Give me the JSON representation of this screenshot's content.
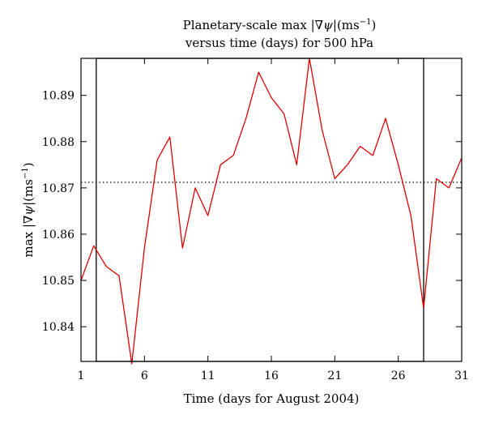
{
  "chart_data": {
    "type": "line",
    "title_lines": [
      "Planetary-scale max |∇ψ|(ms⁻¹)",
      "versus time (days) for 500 hPa"
    ],
    "xlabel": "Time (days for August 2004)",
    "ylabel": "max |∇ψ|(ms⁻¹)",
    "xlim": [
      1,
      31
    ],
    "ylim": [
      10.8325,
      10.898
    ],
    "x_ticks": [
      1,
      6,
      11,
      16,
      21,
      26,
      31
    ],
    "y_ticks": [
      10.84,
      10.85,
      10.86,
      10.87,
      10.88,
      10.89
    ],
    "y_tick_labels": [
      "10.84",
      "10.85",
      "10.86",
      "10.87",
      "10.88",
      "10.89"
    ],
    "reference_line": {
      "y": 10.8712,
      "style": "dotted"
    },
    "window_box": {
      "x_start": 2.2,
      "x_end": 28
    },
    "grid": false,
    "series": [
      {
        "color": "#e00000",
        "x": [
          1,
          2,
          3,
          4,
          5,
          6,
          7,
          8,
          9,
          10,
          11,
          12,
          13,
          14,
          15,
          16,
          17,
          18,
          19,
          20,
          21,
          22,
          23,
          24,
          25,
          26,
          27,
          28,
          29,
          30,
          31
        ],
        "values": [
          10.85,
          10.8575,
          10.853,
          10.851,
          10.832,
          10.857,
          10.876,
          10.881,
          10.857,
          10.87,
          10.864,
          10.875,
          10.877,
          10.885,
          10.895,
          10.8895,
          10.886,
          10.875,
          10.898,
          10.8825,
          10.872,
          10.875,
          10.879,
          10.877,
          10.885,
          10.875,
          10.864,
          10.844,
          10.872,
          10.87,
          10.8765
        ]
      }
    ]
  }
}
